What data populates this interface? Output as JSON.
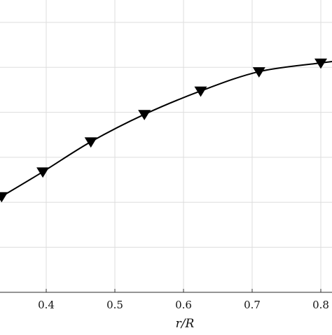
{
  "chart_data": {
    "type": "line",
    "xlabel": "r/R",
    "ylabel": "",
    "xlim": [
      0.33,
      0.82
    ],
    "x_ticks": [
      0.4,
      0.5,
      0.6,
      0.7,
      0.8
    ],
    "x_tick_labels": [
      "0.4",
      "0.5",
      "0.6",
      "0.7",
      "0.8"
    ],
    "y_gridlines": 7,
    "grid": true,
    "marker": "down-triangle",
    "series": [
      {
        "color": "#000000",
        "x": [
          0.335,
          0.395,
          0.465,
          0.543,
          0.625,
          0.71,
          0.8
        ],
        "y_rel": [
          0.0,
          0.185,
          0.41,
          0.615,
          0.79,
          0.935,
          1.0
        ]
      }
    ]
  }
}
